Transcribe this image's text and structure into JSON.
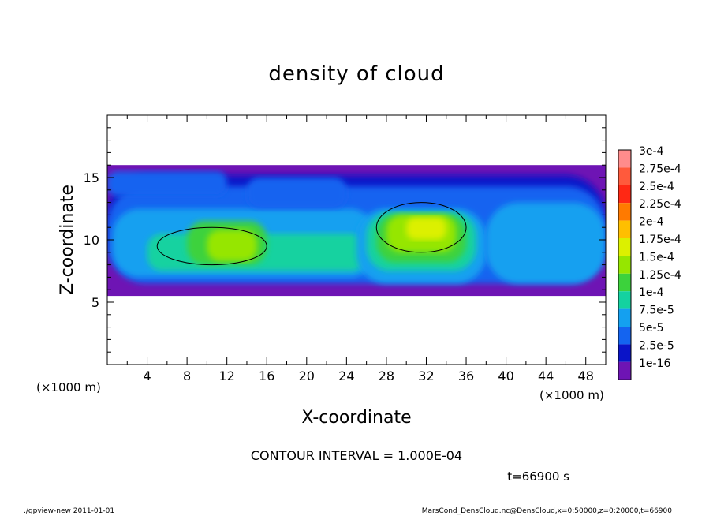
{
  "chart_data": {
    "type": "heatmap",
    "title": "density of cloud",
    "xlabel": "X-coordinate",
    "ylabel": "Z-coordinate",
    "x_unit": "(×1000 m)",
    "z_unit": "(×1000 m)",
    "xlim": [
      0,
      50
    ],
    "ylim": [
      0,
      20
    ],
    "x_ticks": [
      4,
      8,
      12,
      16,
      20,
      24,
      28,
      32,
      36,
      40,
      44,
      48
    ],
    "y_ticks": [
      5,
      10,
      15
    ],
    "colorbar": {
      "labels": [
        "3e-4",
        "2.75e-4",
        "2.5e-4",
        "2.25e-4",
        "2e-4",
        "1.75e-4",
        "1.5e-4",
        "1.25e-4",
        "1e-4",
        "7.5e-5",
        "5e-5",
        "2.5e-5",
        "1e-16"
      ],
      "colors": [
        "#ff8c8c",
        "#ff5a3c",
        "#ff2814",
        "#ff7a00",
        "#ffbf00",
        "#dcf000",
        "#96e600",
        "#3cd23c",
        "#14d2a0",
        "#14a0f0",
        "#1464f0",
        "#0a14c8",
        "#6e14b4"
      ]
    },
    "cloud_layer_z_range": [
      5.5,
      16
    ],
    "max_density_region": {
      "x": [
        27,
        36
      ],
      "z": [
        9,
        13
      ]
    },
    "contour_interval": "CONTOUR INTERVAL = 1.000E-04",
    "time": "t=66900 s"
  },
  "footer": {
    "left": "./gpview-new   2011-01-01",
    "right": "MarsCond_DensCloud.nc@DensCloud,x=0:50000,z=0:20000,t=66900"
  }
}
